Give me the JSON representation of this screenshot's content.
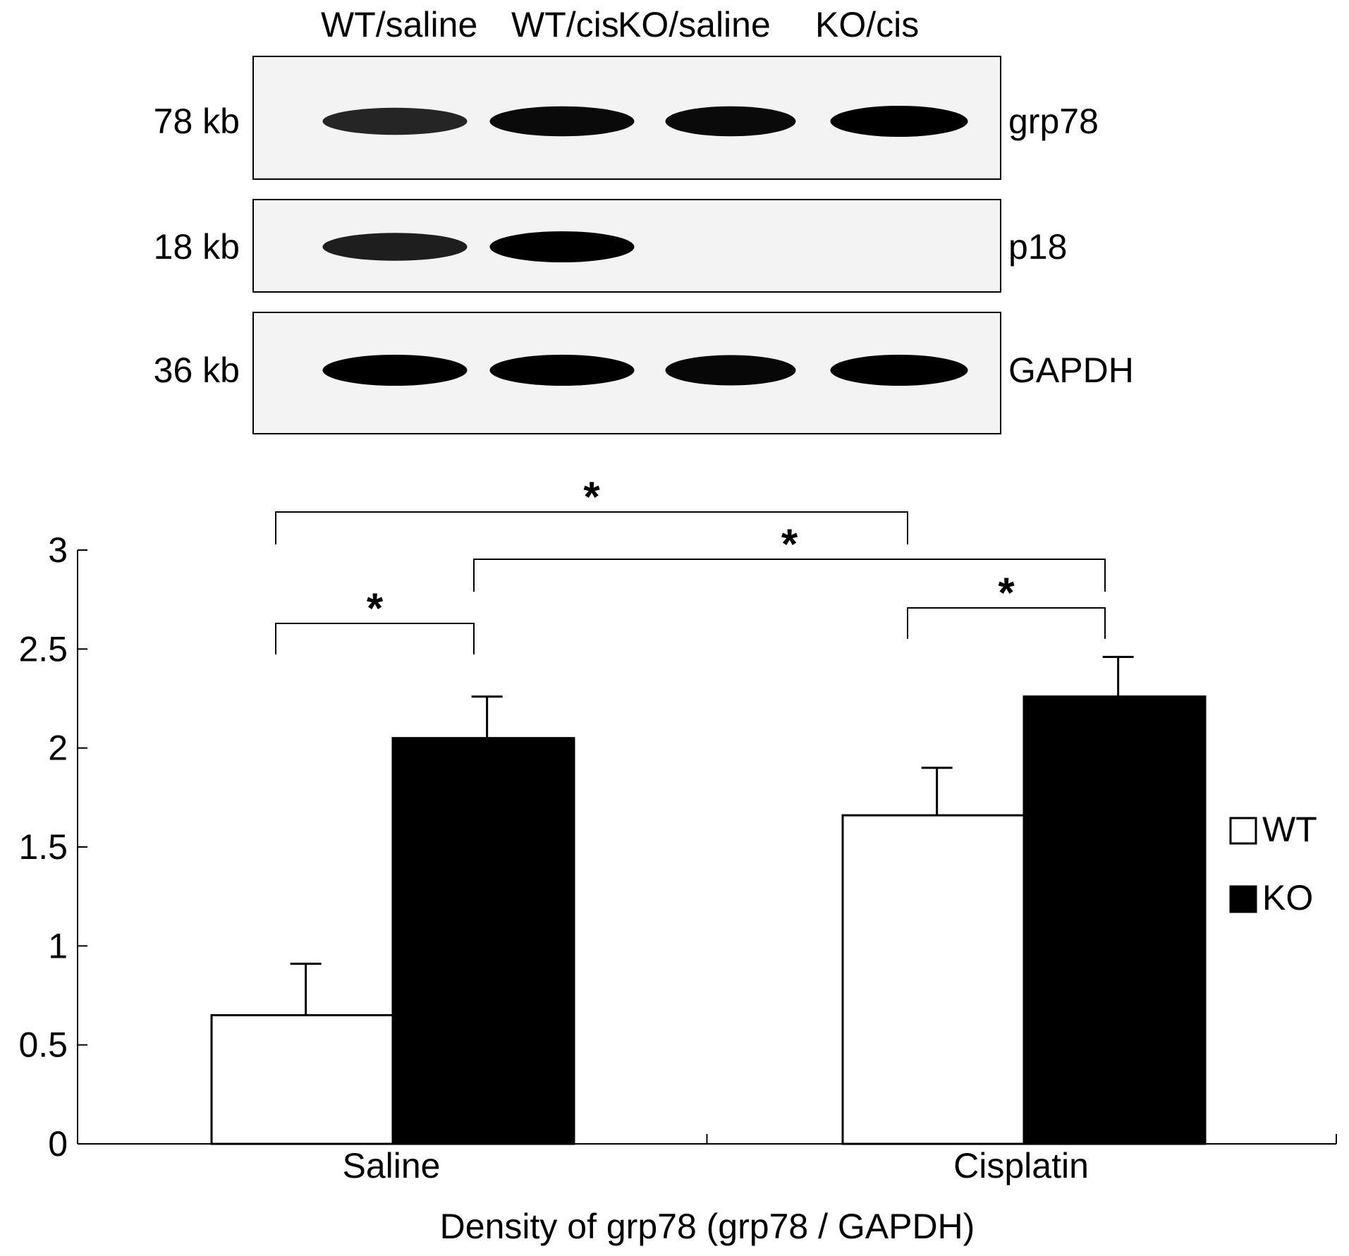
{
  "blot": {
    "lanes": [
      "WT/saline",
      "WT/cis",
      "KO/saline",
      "KO/cis"
    ],
    "rows": [
      {
        "size": "78 kb",
        "protein": "grp78",
        "intensity": [
          0.72,
          0.93,
          0.93,
          1.0
        ]
      },
      {
        "size": "18 kb",
        "protein": "p18",
        "intensity": [
          0.78,
          1.0,
          0,
          0
        ]
      },
      {
        "size": "36 kb",
        "protein": "GAPDH",
        "intensity": [
          1.0,
          1.0,
          0.95,
          1.0
        ]
      }
    ]
  },
  "chart_data": {
    "type": "bar",
    "categories": [
      "Saline",
      "Cisplatin"
    ],
    "series": [
      {
        "name": "WT",
        "values": [
          0.65,
          1.66
        ],
        "errors": [
          0.26,
          0.24
        ],
        "fill": "#ffffff"
      },
      {
        "name": "KO",
        "values": [
          2.05,
          2.26
        ],
        "errors": [
          0.21,
          0.2
        ],
        "fill": "#000000"
      }
    ],
    "ylim": [
      0,
      3
    ],
    "yticks": [
      "0",
      "0.5",
      "1",
      "1.5",
      "2",
      "2.5",
      "3"
    ],
    "xlabel": "Density of grp78 (grp78 / GAPDH)",
    "ylabel": "",
    "legend_position": "right",
    "significance": [
      {
        "from": "Saline/WT",
        "to": "Saline/KO",
        "label": "*"
      },
      {
        "from": "Saline/WT",
        "to": "Cisplatin/WT",
        "label": "*"
      },
      {
        "from": "Saline/KO",
        "to": "Cisplatin/KO",
        "label": "*"
      },
      {
        "from": "Cisplatin/WT",
        "to": "Cisplatin/KO",
        "label": "*"
      }
    ]
  }
}
